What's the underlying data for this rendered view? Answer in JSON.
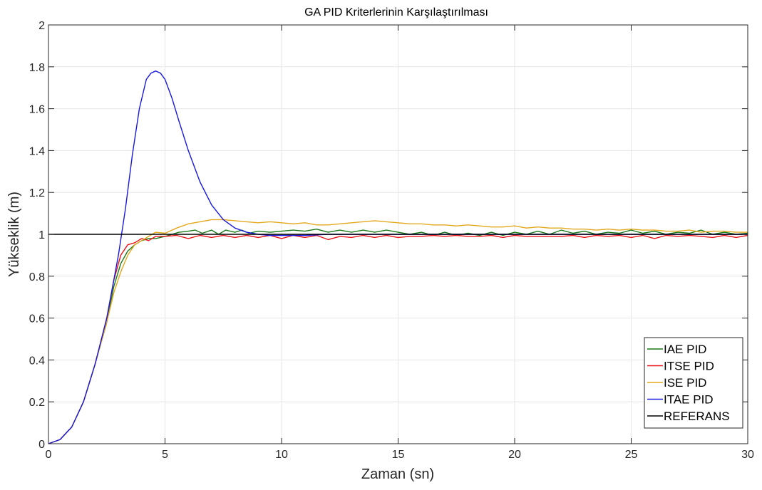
{
  "chart_data": {
    "type": "line",
    "title": "GA PID Kriterlerinin Karşılaştırılması",
    "xlabel": "Zaman (sn)",
    "ylabel": "Yükseklik (m)",
    "xlim": [
      0,
      30
    ],
    "ylim": [
      0,
      2
    ],
    "xticks": [
      "0",
      "5",
      "10",
      "15",
      "20",
      "25",
      "30"
    ],
    "yticks": [
      "0",
      "0.2",
      "0.4",
      "0.6",
      "0.8",
      "1",
      "1.2",
      "1.4",
      "1.6",
      "1.8",
      "2"
    ],
    "grid": true,
    "legend_position": "bottom-right",
    "series": [
      {
        "name": "IAE PID",
        "color": "#1a7a1a",
        "x": [
          0,
          0.5,
          1,
          1.5,
          2,
          2.5,
          2.8,
          3.1,
          3.4,
          3.7,
          4,
          4.3,
          4.6,
          5,
          5.3,
          5.6,
          6,
          6.3,
          6.6,
          7,
          7.3,
          7.6,
          8,
          8.3,
          8.6,
          9,
          9.5,
          10,
          10.5,
          11,
          11.5,
          12,
          12.5,
          13,
          13.5,
          14,
          14.5,
          15,
          15.5,
          16,
          16.5,
          17,
          17.5,
          18,
          18.5,
          19,
          19.5,
          20,
          20.5,
          21,
          21.5,
          22,
          22.5,
          23,
          23.5,
          24,
          24.5,
          25,
          25.5,
          26,
          26.5,
          27,
          27.5,
          28,
          28.5,
          29,
          29.5,
          30
        ],
        "y": [
          0,
          0.02,
          0.08,
          0.2,
          0.38,
          0.58,
          0.75,
          0.86,
          0.92,
          0.95,
          0.97,
          0.98,
          0.98,
          0.99,
          1.0,
          1.01,
          1.015,
          1.02,
          1.005,
          1.02,
          1.0,
          1.02,
          1.01,
          1.02,
          1.005,
          1.015,
          1.01,
          1.015,
          1.02,
          1.015,
          1.025,
          1.01,
          1.02,
          1.01,
          1.02,
          1.01,
          1.02,
          1.01,
          1.0,
          1.01,
          0.995,
          1.01,
          0.995,
          1.005,
          0.995,
          1.01,
          0.995,
          1.01,
          1.0,
          1.015,
          1.0,
          1.02,
          1.005,
          1.015,
          1.0,
          1.01,
          1.005,
          1.02,
          1.005,
          1.015,
          1.0,
          1.01,
          1.005,
          1.02,
          1.0,
          1.01,
          1.0,
          1.005
        ]
      },
      {
        "name": "ITSE PID",
        "color": "#e8141a",
        "x": [
          0,
          0.5,
          1,
          1.5,
          2,
          2.5,
          2.8,
          3.1,
          3.4,
          3.7,
          4,
          4.3,
          4.6,
          5,
          5.5,
          6,
          6.5,
          7,
          7.5,
          8,
          8.5,
          9,
          9.5,
          10,
          10.5,
          11,
          11.5,
          12,
          12.5,
          13,
          13.5,
          14,
          14.5,
          15,
          15.5,
          16,
          16.5,
          17,
          17.5,
          18,
          18.5,
          19,
          19.5,
          20,
          20.5,
          21,
          21.5,
          22,
          22.5,
          23,
          23.5,
          24,
          24.5,
          25,
          25.5,
          26,
          26.5,
          27,
          27.5,
          28,
          28.5,
          29,
          29.5,
          30
        ],
        "y": [
          0,
          0.02,
          0.08,
          0.2,
          0.38,
          0.6,
          0.78,
          0.9,
          0.95,
          0.96,
          0.98,
          0.97,
          0.99,
          0.99,
          0.995,
          0.98,
          0.995,
          0.985,
          0.995,
          0.985,
          0.995,
          0.985,
          0.995,
          0.98,
          0.995,
          0.985,
          0.995,
          0.975,
          0.99,
          0.985,
          0.995,
          0.985,
          0.995,
          0.985,
          0.99,
          0.99,
          0.995,
          0.99,
          0.995,
          0.99,
          0.99,
          0.995,
          0.985,
          0.995,
          0.99,
          0.99,
          0.99,
          0.99,
          0.995,
          0.985,
          0.995,
          0.99,
          0.995,
          0.985,
          0.995,
          0.98,
          0.995,
          0.99,
          0.995,
          0.99,
          0.985,
          0.995,
          0.985,
          0.995
        ]
      },
      {
        "name": "ISE PID",
        "color": "#e3a81c",
        "x": [
          0,
          0.5,
          1,
          1.5,
          2,
          2.5,
          2.8,
          3.1,
          3.4,
          3.7,
          4,
          4.3,
          4.6,
          5,
          5.5,
          6,
          6.5,
          7,
          7.5,
          8,
          8.5,
          9,
          9.5,
          10,
          10.5,
          11,
          11.5,
          12,
          12.5,
          13,
          13.5,
          14,
          14.5,
          15,
          15.5,
          16,
          16.5,
          17,
          17.5,
          18,
          18.5,
          19,
          19.5,
          20,
          20.5,
          21,
          21.5,
          22,
          22.5,
          23,
          23.5,
          24,
          24.5,
          25,
          25.5,
          26,
          26.5,
          27,
          27.5,
          28,
          28.5,
          29,
          29.5,
          30
        ],
        "y": [
          0,
          0.02,
          0.08,
          0.2,
          0.38,
          0.58,
          0.72,
          0.82,
          0.9,
          0.95,
          0.97,
          0.99,
          1.01,
          1.005,
          1.03,
          1.05,
          1.06,
          1.07,
          1.07,
          1.065,
          1.06,
          1.055,
          1.06,
          1.055,
          1.05,
          1.055,
          1.045,
          1.045,
          1.05,
          1.055,
          1.06,
          1.065,
          1.06,
          1.055,
          1.05,
          1.05,
          1.045,
          1.045,
          1.04,
          1.045,
          1.04,
          1.035,
          1.035,
          1.04,
          1.03,
          1.035,
          1.03,
          1.03,
          1.025,
          1.025,
          1.02,
          1.025,
          1.02,
          1.025,
          1.02,
          1.02,
          1.015,
          1.015,
          1.02,
          1.01,
          1.015,
          1.015,
          1.01,
          1.01
        ]
      },
      {
        "name": "ITAE PID",
        "color": "#1818e0",
        "x": [
          0,
          0.5,
          1,
          1.5,
          2,
          2.5,
          3,
          3.3,
          3.6,
          3.9,
          4.2,
          4.4,
          4.6,
          4.8,
          5,
          5.3,
          5.6,
          6,
          6.5,
          7,
          7.5,
          8,
          8.5,
          9,
          9.5,
          10,
          11,
          12,
          13,
          14,
          15,
          16,
          18,
          20,
          22,
          25,
          28,
          30
        ],
        "y": [
          0,
          0.02,
          0.08,
          0.2,
          0.38,
          0.6,
          0.9,
          1.12,
          1.38,
          1.6,
          1.74,
          1.77,
          1.78,
          1.77,
          1.74,
          1.65,
          1.54,
          1.4,
          1.25,
          1.14,
          1.07,
          1.03,
          1.01,
          1.0,
          0.995,
          0.995,
          0.995,
          1.0,
          1.0,
          1.0,
          1.0,
          1.0,
          1.0,
          1.0,
          1.0,
          1.0,
          1.0,
          1.0
        ]
      },
      {
        "name": "REFERANS",
        "color": "#000000",
        "x": [
          0,
          30
        ],
        "y": [
          1,
          1
        ]
      }
    ]
  }
}
